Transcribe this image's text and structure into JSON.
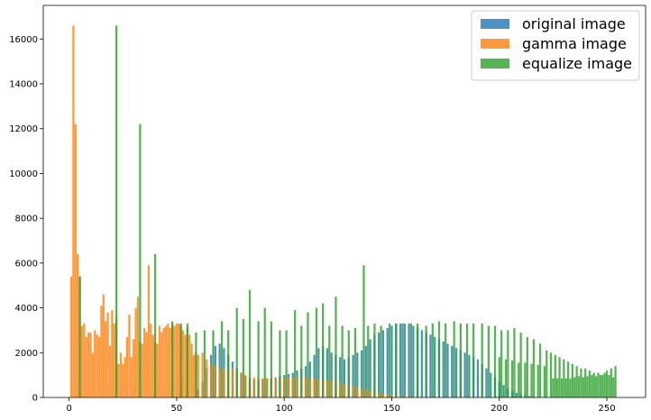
{
  "chart_data": {
    "type": "bar",
    "title": "",
    "xlabel": "",
    "ylabel": "",
    "xlim": [
      -12,
      268
    ],
    "ylim": [
      0,
      17500
    ],
    "x_ticks": [
      0,
      50,
      100,
      150,
      200,
      250
    ],
    "y_ticks": [
      0,
      2000,
      4000,
      6000,
      8000,
      10000,
      12000,
      14000,
      16000
    ],
    "grid": false,
    "legend_position": "top-right",
    "series": [
      {
        "name": "original image",
        "color": "#1f77b4",
        "opacity": 0.8,
        "points": [
          [
            60,
            350
          ],
          [
            62,
            700
          ],
          [
            64,
            1300
          ],
          [
            66,
            1900
          ],
          [
            68,
            2300
          ],
          [
            70,
            2400
          ],
          [
            72,
            2200
          ],
          [
            74,
            1900
          ],
          [
            76,
            1600
          ],
          [
            78,
            1300
          ],
          [
            80,
            1100
          ],
          [
            82,
            950
          ],
          [
            84,
            850
          ],
          [
            86,
            800
          ],
          [
            88,
            800
          ],
          [
            90,
            800
          ],
          [
            92,
            850
          ],
          [
            94,
            850
          ],
          [
            96,
            900
          ],
          [
            98,
            950
          ],
          [
            100,
            1000
          ],
          [
            102,
            1050
          ],
          [
            104,
            1100
          ],
          [
            106,
            1200
          ],
          [
            108,
            1300
          ],
          [
            110,
            1400
          ],
          [
            112,
            1600
          ],
          [
            114,
            1900
          ],
          [
            116,
            2200
          ],
          [
            118,
            2300
          ],
          [
            120,
            2200
          ],
          [
            122,
            2000
          ],
          [
            124,
            1900
          ],
          [
            126,
            1800
          ],
          [
            128,
            1700
          ],
          [
            130,
            1800
          ],
          [
            132,
            1900
          ],
          [
            134,
            2000
          ],
          [
            136,
            2100
          ],
          [
            138,
            2300
          ],
          [
            140,
            2600
          ],
          [
            142,
            2800
          ],
          [
            144,
            2900
          ],
          [
            146,
            3000
          ],
          [
            148,
            3100
          ],
          [
            150,
            3200
          ],
          [
            152,
            3300
          ],
          [
            154,
            3300
          ],
          [
            156,
            3300
          ],
          [
            158,
            3300
          ],
          [
            160,
            3200
          ],
          [
            162,
            3100
          ],
          [
            164,
            3000
          ],
          [
            166,
            2900
          ],
          [
            168,
            2800
          ],
          [
            170,
            2700
          ],
          [
            172,
            2600
          ],
          [
            174,
            2500
          ],
          [
            176,
            2400
          ],
          [
            178,
            2300
          ],
          [
            180,
            2200
          ],
          [
            182,
            2100
          ],
          [
            184,
            2000
          ],
          [
            186,
            1900
          ],
          [
            188,
            1800
          ],
          [
            190,
            1700
          ],
          [
            192,
            1500
          ],
          [
            194,
            1300
          ],
          [
            196,
            1100
          ],
          [
            198,
            900
          ],
          [
            200,
            700
          ],
          [
            202,
            550
          ],
          [
            204,
            400
          ],
          [
            206,
            300
          ],
          [
            208,
            200
          ],
          [
            210,
            150
          ],
          [
            212,
            100
          ],
          [
            214,
            60
          ],
          [
            216,
            40
          ],
          [
            218,
            20
          ],
          [
            220,
            10
          ]
        ]
      },
      {
        "name": "gamma image",
        "color": "#ff7f0e",
        "opacity": 0.8,
        "points": [
          [
            1,
            5400
          ],
          [
            2,
            16600
          ],
          [
            3,
            12200
          ],
          [
            4,
            6400
          ],
          [
            5,
            5400
          ],
          [
            6,
            3200
          ],
          [
            7,
            3300
          ],
          [
            8,
            2700
          ],
          [
            9,
            2900
          ],
          [
            10,
            2900
          ],
          [
            11,
            2000
          ],
          [
            12,
            3000
          ],
          [
            13,
            2800
          ],
          [
            14,
            2700
          ],
          [
            15,
            4100
          ],
          [
            16,
            4600
          ],
          [
            17,
            3400
          ],
          [
            18,
            3800
          ],
          [
            19,
            2300
          ],
          [
            20,
            3900
          ],
          [
            21,
            3300
          ],
          [
            22,
            3600
          ],
          [
            23,
            1500
          ],
          [
            24,
            2000
          ],
          [
            25,
            1500
          ],
          [
            26,
            1800
          ],
          [
            27,
            2700
          ],
          [
            28,
            3700
          ],
          [
            29,
            1800
          ],
          [
            30,
            2600
          ],
          [
            31,
            4000
          ],
          [
            32,
            4500
          ],
          [
            33,
            2500
          ],
          [
            34,
            2400
          ],
          [
            35,
            3100
          ],
          [
            36,
            2900
          ],
          [
            37,
            5900
          ],
          [
            38,
            3300
          ],
          [
            39,
            2800
          ],
          [
            40,
            2500
          ],
          [
            41,
            2400
          ],
          [
            42,
            3200
          ],
          [
            43,
            2900
          ],
          [
            44,
            3100
          ],
          [
            45,
            3200
          ],
          [
            46,
            3300
          ],
          [
            47,
            3100
          ],
          [
            48,
            3300
          ],
          [
            49,
            3200
          ],
          [
            50,
            3300
          ],
          [
            51,
            3300
          ],
          [
            52,
            3200
          ],
          [
            53,
            3000
          ],
          [
            54,
            2800
          ],
          [
            55,
            3100
          ],
          [
            56,
            2800
          ],
          [
            57,
            2400
          ],
          [
            58,
            1900
          ],
          [
            59,
            2000
          ],
          [
            60,
            1900
          ],
          [
            62,
            2000
          ],
          [
            64,
            1700
          ],
          [
            66,
            1500
          ],
          [
            68,
            1400
          ],
          [
            70,
            1300
          ],
          [
            72,
            1300
          ],
          [
            74,
            1200
          ],
          [
            76,
            1300
          ],
          [
            78,
            1100
          ],
          [
            80,
            1100
          ],
          [
            82,
            1000
          ],
          [
            84,
            900
          ],
          [
            86,
            900
          ],
          [
            88,
            850
          ],
          [
            90,
            850
          ],
          [
            92,
            850
          ],
          [
            94,
            850
          ],
          [
            96,
            850
          ],
          [
            98,
            850
          ],
          [
            100,
            900
          ],
          [
            102,
            900
          ],
          [
            104,
            900
          ],
          [
            106,
            900
          ],
          [
            108,
            900
          ],
          [
            110,
            900
          ],
          [
            112,
            850
          ],
          [
            114,
            850
          ],
          [
            116,
            800
          ],
          [
            118,
            800
          ],
          [
            120,
            800
          ],
          [
            122,
            750
          ],
          [
            124,
            700
          ],
          [
            126,
            650
          ],
          [
            128,
            600
          ],
          [
            130,
            550
          ],
          [
            132,
            500
          ],
          [
            134,
            450
          ],
          [
            136,
            400
          ],
          [
            138,
            350
          ],
          [
            140,
            300
          ],
          [
            142,
            250
          ],
          [
            144,
            200
          ],
          [
            146,
            150
          ],
          [
            148,
            120
          ],
          [
            150,
            100
          ],
          [
            152,
            80
          ],
          [
            154,
            60
          ],
          [
            156,
            40
          ],
          [
            158,
            30
          ],
          [
            160,
            20
          ]
        ]
      },
      {
        "name": "equalize image",
        "color": "#2ca02c",
        "opacity": 0.8,
        "points": [
          [
            5,
            5400
          ],
          [
            22,
            16600
          ],
          [
            33,
            12200
          ],
          [
            40,
            6400
          ],
          [
            48,
            3400
          ],
          [
            52,
            3300
          ],
          [
            55,
            3300
          ],
          [
            59,
            2900
          ],
          [
            63,
            3000
          ],
          [
            67,
            3000
          ],
          [
            71,
            3400
          ],
          [
            74,
            3000
          ],
          [
            78,
            4000
          ],
          [
            81,
            3500
          ],
          [
            84,
            4800
          ],
          [
            88,
            3400
          ],
          [
            91,
            4000
          ],
          [
            94,
            3400
          ],
          [
            98,
            3000
          ],
          [
            101,
            3000
          ],
          [
            105,
            3900
          ],
          [
            108,
            3200
          ],
          [
            111,
            3800
          ],
          [
            115,
            4000
          ],
          [
            118,
            4200
          ],
          [
            121,
            3200
          ],
          [
            124,
            4500
          ],
          [
            127,
            3200
          ],
          [
            130,
            3000
          ],
          [
            133,
            3100
          ],
          [
            137,
            5900
          ],
          [
            139,
            3200
          ],
          [
            142,
            3300
          ],
          [
            145,
            3200
          ],
          [
            149,
            3300
          ],
          [
            152,
            3300
          ],
          [
            155,
            3300
          ],
          [
            159,
            3300
          ],
          [
            162,
            3300
          ],
          [
            166,
            3200
          ],
          [
            169,
            3300
          ],
          [
            172,
            3400
          ],
          [
            175,
            3300
          ],
          [
            179,
            3400
          ],
          [
            182,
            3300
          ],
          [
            185,
            3300
          ],
          [
            188,
            3300
          ],
          [
            192,
            3300
          ],
          [
            195,
            3200
          ],
          [
            198,
            3200
          ],
          [
            201,
            3000
          ],
          [
            204,
            3000
          ],
          [
            207,
            3100
          ],
          [
            210,
            2900
          ],
          [
            213,
            2700
          ],
          [
            216,
            2600
          ],
          [
            219,
            2400
          ],
          [
            222,
            2100
          ],
          [
            224,
            2000
          ],
          [
            226,
            1900
          ],
          [
            228,
            1800
          ],
          [
            230,
            1700
          ],
          [
            232,
            1600
          ],
          [
            234,
            1500
          ],
          [
            236,
            1400
          ],
          [
            238,
            1300
          ],
          [
            240,
            1300
          ],
          [
            242,
            1200
          ],
          [
            244,
            1100
          ],
          [
            246,
            1100
          ],
          [
            248,
            1000
          ],
          [
            250,
            1200
          ],
          [
            252,
            1300
          ],
          [
            254,
            1400
          ],
          [
            200,
            1800
          ],
          [
            203,
            1700
          ],
          [
            206,
            1650
          ],
          [
            209,
            1550
          ],
          [
            212,
            1550
          ],
          [
            215,
            1500
          ],
          [
            218,
            1450
          ],
          [
            221,
            1400
          ],
          [
            225,
            850
          ],
          [
            227,
            850
          ],
          [
            229,
            850
          ],
          [
            231,
            850
          ],
          [
            233,
            850
          ],
          [
            235,
            900
          ],
          [
            237,
            950
          ],
          [
            239,
            900
          ],
          [
            241,
            950
          ],
          [
            243,
            1000
          ],
          [
            245,
            950
          ],
          [
            247,
            1000
          ],
          [
            249,
            1100
          ],
          [
            251,
            1000
          ],
          [
            253,
            900
          ]
        ]
      }
    ]
  }
}
